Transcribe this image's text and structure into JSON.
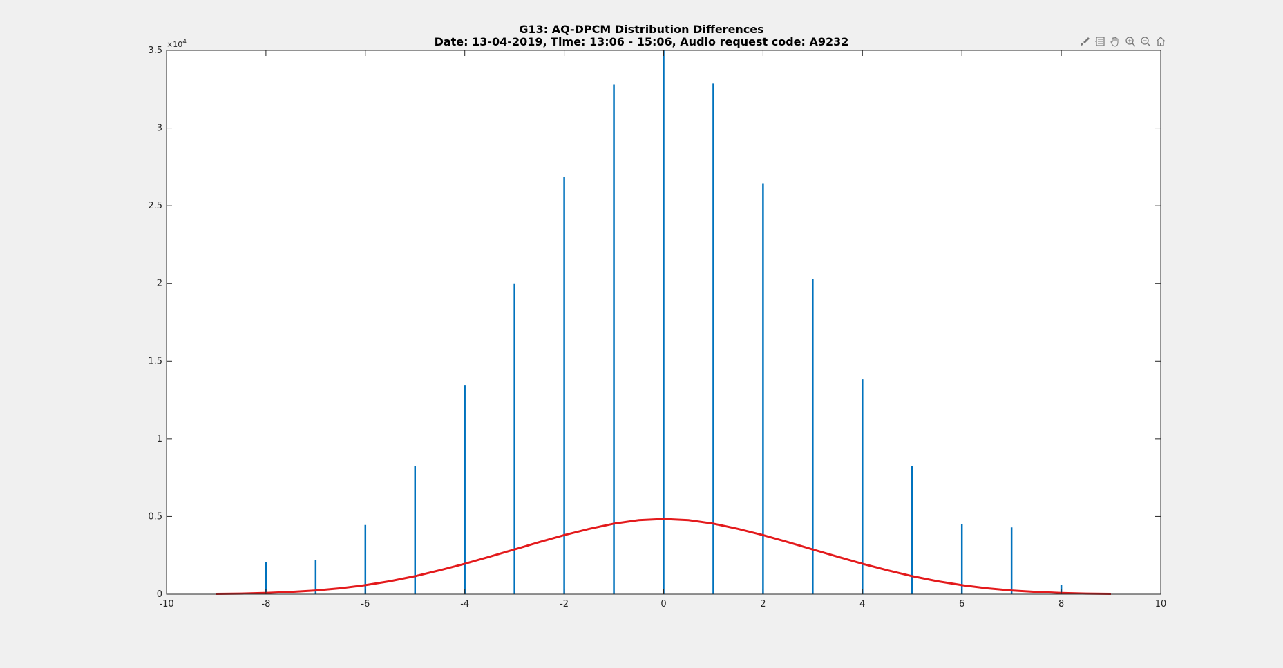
{
  "chart_data": {
    "type": "bar",
    "title": "G13: AQ-DPCM Distribution Differences",
    "subtitle": "Date: 13-04-2019, Time: 13:06 - 15:06, Audio request code: A9232",
    "xlabel": "",
    "ylabel": "",
    "y_exponent_label": "×10",
    "y_exponent": "4",
    "xlim": [
      -10,
      10
    ],
    "ylim": [
      0,
      35000
    ],
    "x_ticks": [
      -10,
      -8,
      -6,
      -4,
      -2,
      0,
      2,
      4,
      6,
      8,
      10
    ],
    "x_tick_labels": [
      "-10",
      "-8",
      "-6",
      "-4",
      "-2",
      "0",
      "2",
      "4",
      "6",
      "8",
      "10"
    ],
    "y_ticks": [
      0,
      5000,
      10000,
      15000,
      20000,
      25000,
      30000,
      35000
    ],
    "y_tick_labels": [
      "0",
      "0.5",
      "1",
      "1.5",
      "2",
      "2.5",
      "3",
      "3.5"
    ],
    "grid": false,
    "series": [
      {
        "type": "stem",
        "color": "#0072bd",
        "x": [
          -8,
          -7,
          -6,
          -5,
          -4,
          -3,
          -2,
          -1,
          0,
          1,
          2,
          3,
          4,
          5,
          6,
          7,
          8
        ],
        "values": [
          2050,
          2200,
          4450,
          8250,
          13450,
          20000,
          26850,
          32800,
          35000,
          32850,
          26450,
          20300,
          13850,
          8250,
          4500,
          4300,
          600
        ]
      },
      {
        "type": "line",
        "color": "#e31a1c",
        "x": [
          -9,
          -8.5,
          -8,
          -7.5,
          -7,
          -6.5,
          -6,
          -5.5,
          -5,
          -4.5,
          -4,
          -3.5,
          -3,
          -2.5,
          -2,
          -1.5,
          -1,
          -0.5,
          0,
          0.5,
          1,
          1.5,
          2,
          2.5,
          3,
          3.5,
          4,
          4.5,
          5,
          5.5,
          6,
          6.5,
          7,
          7.5,
          8,
          8.5,
          9
        ],
        "values": [
          20,
          40,
          80,
          140,
          240,
          380,
          580,
          840,
          1160,
          1540,
          1960,
          2410,
          2880,
          3350,
          3800,
          4200,
          4540,
          4760,
          4840,
          4760,
          4540,
          4200,
          3800,
          3350,
          2880,
          2410,
          1960,
          1540,
          1160,
          840,
          580,
          380,
          240,
          140,
          80,
          40,
          20
        ]
      }
    ]
  },
  "toolbar": {
    "icons": [
      "brush-icon",
      "datatip-icon",
      "pan-hand-icon",
      "zoom-in-icon",
      "zoom-out-icon",
      "home-icon"
    ]
  }
}
